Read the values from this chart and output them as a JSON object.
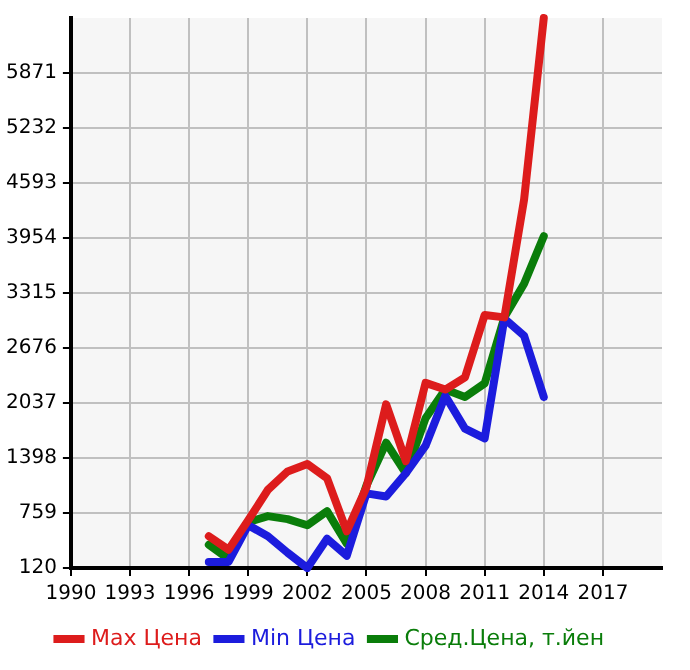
{
  "chart_data": {
    "type": "line",
    "x": [
      1997,
      1998,
      1999,
      2000,
      2001,
      2002,
      2003,
      2004,
      2005,
      2006,
      2007,
      2008,
      2009,
      2010,
      2011,
      2012,
      2013,
      2014
    ],
    "series": [
      {
        "name": "Max Цена",
        "color": "#dd1c1c",
        "values": [
          489,
          333,
          674,
          1029,
          1242,
          1328,
          1164,
          546,
          1057,
          2022,
          1362,
          2271,
          2193,
          2335,
          3059,
          3032,
          4400,
          6510
        ]
      },
      {
        "name": "Min Цена",
        "color": "#1c1cdd",
        "values": [
          190,
          190,
          617,
          489,
          297,
          120,
          461,
          262,
          987,
          951,
          1221,
          1541,
          2122,
          1739,
          1626,
          3017,
          2819,
          2107
        ]
      },
      {
        "name": "Сред.Цена, т.йен",
        "color": "#0a7d0a",
        "values": [
          390,
          226,
          653,
          723,
          688,
          617,
          780,
          404,
          1079,
          1575,
          1221,
          1860,
          2193,
          2107,
          2265,
          3032,
          3422,
          3975
        ]
      }
    ],
    "xlim": [
      1990,
      2020
    ],
    "xticks": [
      1990,
      1993,
      1996,
      1999,
      2002,
      2005,
      2008,
      2011,
      2014,
      2017
    ],
    "ylim": [
      120,
      6510
    ],
    "yticks": [
      120,
      759,
      1398,
      2037,
      2676,
      3315,
      3954,
      4593,
      5232,
      5871
    ],
    "grid": true,
    "legend": "bottom",
    "marker": "none",
    "line_style": "solid"
  }
}
